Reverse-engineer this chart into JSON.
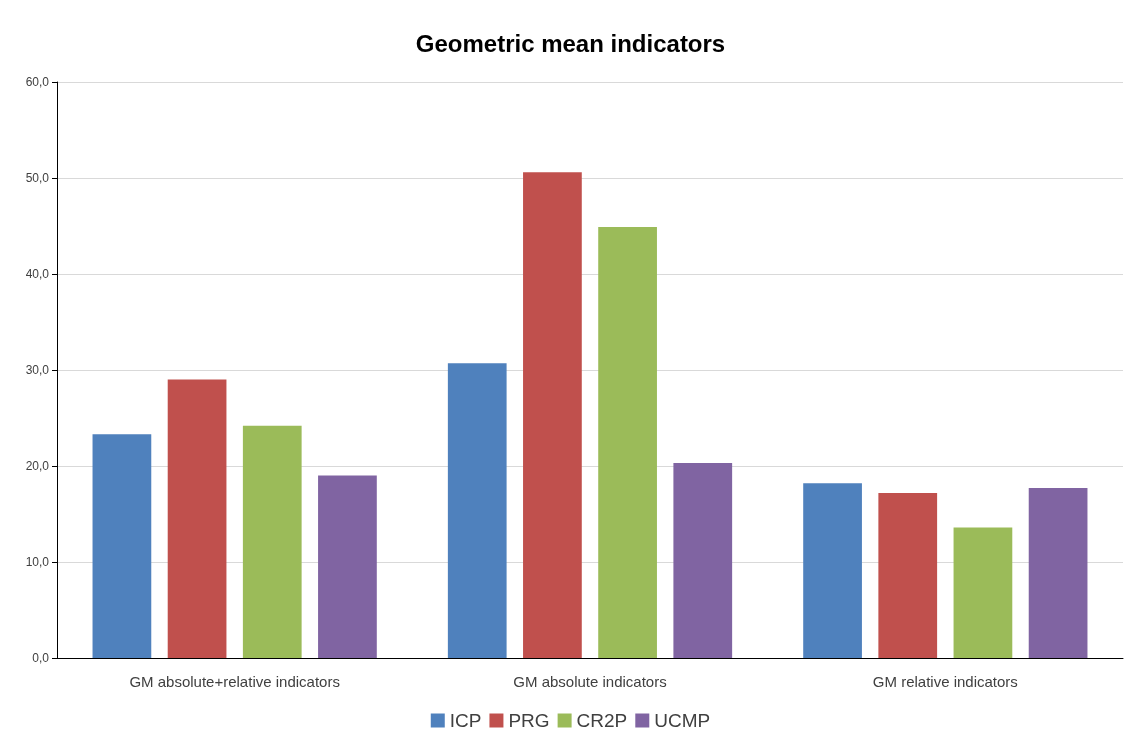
{
  "chart_data": {
    "type": "bar",
    "title": "Geometric mean indicators",
    "categories": [
      "GM absolute+relative indicators",
      "GM absolute indicators",
      "GM relative indicators"
    ],
    "series": [
      {
        "name": "ICP",
        "color": "#4f81bd",
        "values": [
          23.3,
          30.7,
          18.2
        ]
      },
      {
        "name": "PRG",
        "color": "#c0504d",
        "values": [
          29.0,
          50.6,
          17.2
        ]
      },
      {
        "name": "CR2P",
        "color": "#9bbb59",
        "values": [
          24.2,
          44.9,
          13.6
        ]
      },
      {
        "name": "UCMP",
        "color": "#8064a2",
        "values": [
          19.0,
          20.3,
          17.7
        ]
      }
    ],
    "ylim": [
      0,
      60
    ],
    "yticks": [
      {
        "value": 0,
        "label": "0,0"
      },
      {
        "value": 10,
        "label": "10,0"
      },
      {
        "value": 20,
        "label": "20,0"
      },
      {
        "value": 30,
        "label": "30,0"
      },
      {
        "value": 40,
        "label": "40,0"
      },
      {
        "value": 50,
        "label": "50,0"
      },
      {
        "value": 60,
        "label": "60,0"
      }
    ],
    "grid": "y",
    "legend": "bottom"
  }
}
